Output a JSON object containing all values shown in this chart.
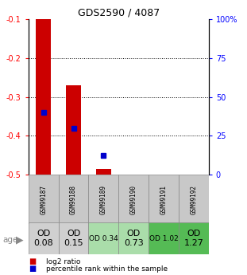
{
  "title": "GDS2590 / 4087",
  "samples": [
    "GSM99187",
    "GSM99188",
    "GSM99189",
    "GSM99190",
    "GSM99191",
    "GSM99192"
  ],
  "log2_bottom": [
    -0.5,
    -0.5,
    -0.5,
    null,
    null,
    null
  ],
  "log2_top": [
    -0.1,
    -0.27,
    -0.485,
    null,
    null,
    null
  ],
  "percentile_rank_y": [
    -0.34,
    -0.38,
    -0.45,
    null,
    null,
    null
  ],
  "ylim": [
    -0.5,
    -0.1
  ],
  "yticks_left": [
    -0.5,
    -0.4,
    -0.3,
    -0.2,
    -0.1
  ],
  "yticks_right": [
    0,
    25,
    50,
    75,
    100
  ],
  "yticks_right_pos": [
    -0.5,
    -0.4,
    -0.3,
    -0.2,
    -0.1
  ],
  "bar_color": "#cc0000",
  "dot_color": "#0000cc",
  "bar_width": 0.5,
  "od_labels": [
    "OD\n0.08",
    "OD\n0.15",
    "OD 0.34",
    "OD\n0.73",
    "OD 1.02",
    "OD\n1.27"
  ],
  "od_fontsize": [
    8,
    8,
    6.5,
    8,
    6.5,
    8
  ],
  "od_bg_colors": [
    "#d0d0d0",
    "#d0d0d0",
    "#aaddaa",
    "#aaddaa",
    "#55bb55",
    "#55bb55"
  ],
  "sample_bg_color": "#c8c8c8",
  "legend_log2_color": "#cc0000",
  "legend_pct_color": "#0000cc",
  "age_label": "age"
}
